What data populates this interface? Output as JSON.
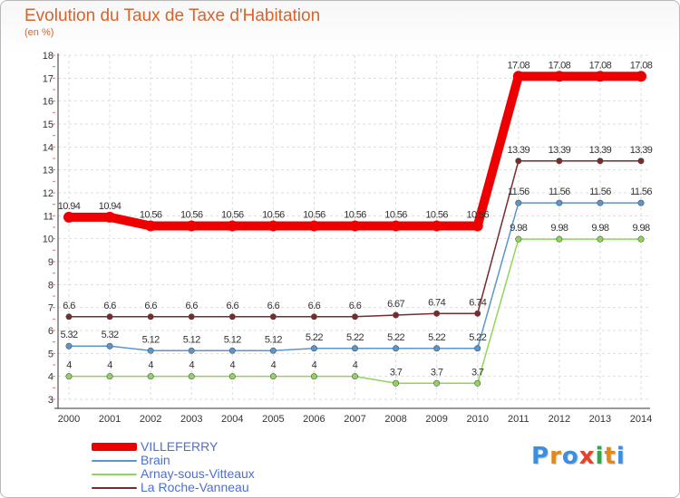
{
  "title": "Evolution du Taux de Taxe d'Habitation",
  "subtitle": "(en %)",
  "logo": {
    "text": "Proxiti",
    "colors": [
      "#3b8fe0",
      "#e08a1e",
      "#3b8fe0",
      "#e8412b",
      "#2ea84a",
      "#e08a1e",
      "#3b8fe0"
    ]
  },
  "chart_data": {
    "type": "line",
    "x": [
      "2000",
      "2001",
      "2002",
      "2003",
      "2004",
      "2005",
      "2006",
      "2007",
      "2008",
      "2009",
      "2010",
      "2011",
      "2012",
      "2013",
      "2014"
    ],
    "ylim": [
      3,
      18
    ],
    "yticks": [
      "3",
      "4",
      "5",
      "6",
      "7",
      "8",
      "9",
      "10",
      "11",
      "12",
      "13",
      "14",
      "15",
      "16",
      "17",
      "18"
    ],
    "grid": true,
    "legend_position": "bottom-left",
    "series": [
      {
        "name": "VILLEFERRY",
        "color": "#ee0000",
        "values": [
          10.94,
          10.94,
          10.56,
          10.56,
          10.56,
          10.56,
          10.56,
          10.56,
          10.56,
          10.56,
          10.56,
          17.08,
          17.08,
          17.08,
          17.08
        ],
        "labels": [
          "10.94",
          "10.94",
          "10.56",
          "10.56",
          "10.56",
          "10.56",
          "10.56",
          "10.56",
          "10.56",
          "10.56",
          "10.56",
          "17.08",
          "17.08",
          "17.08",
          "17.08"
        ]
      },
      {
        "name": "Brain",
        "color": "#5a96cc",
        "values": [
          5.32,
          5.32,
          5.12,
          5.12,
          5.12,
          5.12,
          5.22,
          5.22,
          5.22,
          5.22,
          5.22,
          11.56,
          11.56,
          11.56,
          11.56
        ],
        "labels": [
          "5.32",
          "5.32",
          "5.12",
          "5.12",
          "5.12",
          "5.12",
          "5.22",
          "5.22",
          "5.22",
          "5.22",
          "5.22",
          "11.56",
          "11.56",
          "11.56",
          "11.56"
        ]
      },
      {
        "name": "Arnay-sous-Vitteaux",
        "color": "#8ed65a",
        "values": [
          4,
          4,
          4,
          4,
          4,
          4,
          4,
          4,
          3.7,
          3.7,
          3.7,
          9.98,
          9.98,
          9.98,
          9.98
        ],
        "labels": [
          "4",
          "4",
          "4",
          "4",
          "4",
          "4",
          "4",
          "4",
          "3.7",
          "3.7",
          "3.7",
          "9.98",
          "9.98",
          "9.98",
          "9.98"
        ]
      },
      {
        "name": "La Roche-Vanneau",
        "color": "#7a2a2a",
        "values": [
          6.6,
          6.6,
          6.6,
          6.6,
          6.6,
          6.6,
          6.6,
          6.6,
          6.67,
          6.74,
          6.74,
          13.39,
          13.39,
          13.39,
          13.39
        ],
        "labels": [
          "6.6",
          "6.6",
          "6.6",
          "6.6",
          "6.6",
          "6.6",
          "6.6",
          "6.6",
          "6.67",
          "6.74",
          "6.74",
          "13.39",
          "13.39",
          "13.39",
          "13.39"
        ]
      }
    ]
  }
}
